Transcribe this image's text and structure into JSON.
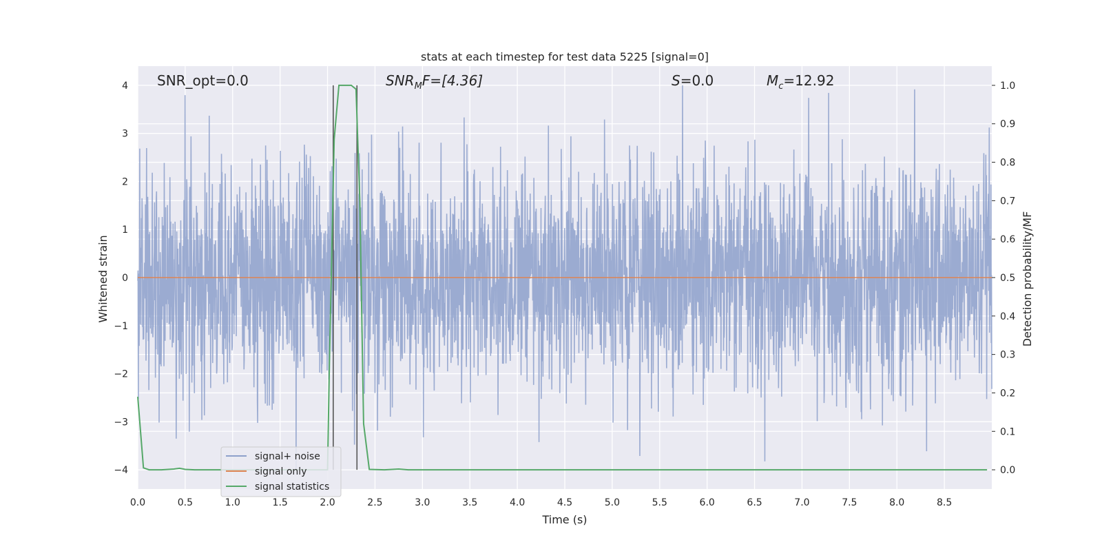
{
  "chart_data": {
    "type": "line",
    "title": "stats at each timestep for test data 5225 [signal=0]",
    "xlabel": "Time (s)",
    "ylabel": "Whitened strain",
    "y2label": "Detection probability/MF",
    "xlim": [
      0.0,
      9.0
    ],
    "ylim": [
      -4.4,
      4.4
    ],
    "y2lim": [
      -0.05,
      1.05
    ],
    "xticks": [
      "0.0",
      "0.5",
      "1.0",
      "1.5",
      "2.0",
      "2.5",
      "3.0",
      "3.5",
      "4.0",
      "4.5",
      "5.0",
      "5.5",
      "6.0",
      "6.5",
      "7.0",
      "7.5",
      "8.0",
      "8.5"
    ],
    "yticks": [
      "4",
      "3",
      "2",
      "1",
      "0",
      "−1",
      "−2",
      "−3",
      "−4"
    ],
    "y2ticks": [
      "1.0",
      "0.9",
      "0.8",
      "0.7",
      "0.6",
      "0.5",
      "0.4",
      "0.3",
      "0.2",
      "0.1",
      "0.0"
    ],
    "grid": true,
    "legend_position": "lower-left",
    "annotations": {
      "snr_opt": "SNR_opt=0.0",
      "snr_mf_base": "SNR",
      "snr_mf_sub": "M",
      "snr_mf_rest": "F=[4.36]",
      "s_base": "S",
      "s_rest": "=0.0",
      "mc_base": "M",
      "mc_sub": "c",
      "mc_rest": "=12.92"
    },
    "vlines": [
      2.06,
      2.31
    ],
    "series": [
      {
        "name": "signal+ noise",
        "color": "#8da0cb",
        "description": "whitened strain noise, amplitude mostly within about ±3.5"
      },
      {
        "name": "signal only",
        "color": "#dd8452",
        "x": [
          0.0,
          9.0
        ],
        "y": [
          0.0,
          0.0
        ]
      },
      {
        "name": "signal statistics",
        "color": "#55a868",
        "x": [
          0.0,
          0.06,
          0.12,
          0.25,
          0.38,
          0.44,
          0.5,
          0.6,
          1.0,
          1.5,
          2.0,
          2.02,
          2.07,
          2.12,
          2.16,
          2.25,
          2.3,
          2.34,
          2.38,
          2.44,
          2.6,
          2.75,
          2.85,
          3.0,
          5.0,
          7.0,
          8.95
        ],
        "y": [
          0.19,
          0.005,
          0.0,
          0.0,
          0.002,
          0.004,
          0.001,
          0.0,
          0.0,
          0.0,
          0.0,
          0.28,
          0.86,
          1.0,
          1.0,
          1.0,
          0.99,
          0.7,
          0.12,
          0.001,
          0.0,
          0.002,
          0.0,
          0.0,
          0.0,
          0.0,
          0.0
        ]
      }
    ]
  }
}
